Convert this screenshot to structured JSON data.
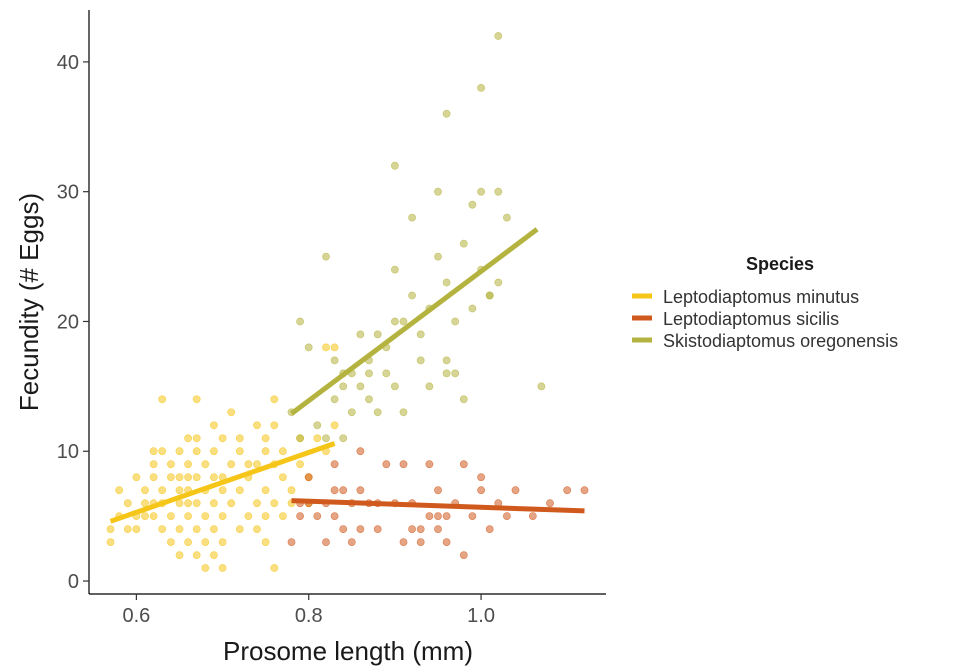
{
  "chart_data": {
    "type": "scatter",
    "xlabel": "Prosome length (mm)",
    "ylabel": "Fecundity (# Eggs)",
    "xlim": [
      0.545,
      1.145
    ],
    "ylim": [
      -1,
      44
    ],
    "x_ticks": [
      0.6,
      0.8,
      1.0
    ],
    "x_tick_labels": [
      "0.6",
      "0.8",
      "1.0"
    ],
    "y_ticks": [
      0,
      10,
      20,
      30,
      40
    ],
    "y_tick_labels": [
      "0",
      "10",
      "20",
      "30",
      "40"
    ],
    "grid": false,
    "legend": {
      "title": "Species",
      "position": "right"
    },
    "series": [
      {
        "name": "Leptodiaptomus minutus",
        "color": "#F5C518",
        "trend": {
          "x": [
            0.57,
            0.83
          ],
          "y": [
            4.6,
            10.6
          ]
        },
        "points": [
          [
            0.57,
            3
          ],
          [
            0.57,
            4
          ],
          [
            0.58,
            5
          ],
          [
            0.58,
            7
          ],
          [
            0.59,
            4
          ],
          [
            0.59,
            6
          ],
          [
            0.6,
            4
          ],
          [
            0.6,
            5
          ],
          [
            0.6,
            8
          ],
          [
            0.61,
            5
          ],
          [
            0.61,
            6
          ],
          [
            0.61,
            7
          ],
          [
            0.62,
            5
          ],
          [
            0.62,
            6
          ],
          [
            0.62,
            8
          ],
          [
            0.62,
            9
          ],
          [
            0.62,
            10
          ],
          [
            0.63,
            4
          ],
          [
            0.63,
            6
          ],
          [
            0.63,
            7
          ],
          [
            0.63,
            10
          ],
          [
            0.63,
            14
          ],
          [
            0.64,
            3
          ],
          [
            0.64,
            5
          ],
          [
            0.64,
            8
          ],
          [
            0.64,
            9
          ],
          [
            0.65,
            2
          ],
          [
            0.65,
            4
          ],
          [
            0.65,
            6
          ],
          [
            0.65,
            7
          ],
          [
            0.65,
            8
          ],
          [
            0.65,
            10
          ],
          [
            0.66,
            3
          ],
          [
            0.66,
            5
          ],
          [
            0.66,
            6
          ],
          [
            0.66,
            7
          ],
          [
            0.66,
            8
          ],
          [
            0.66,
            9
          ],
          [
            0.66,
            11
          ],
          [
            0.67,
            2
          ],
          [
            0.67,
            4
          ],
          [
            0.67,
            6
          ],
          [
            0.67,
            8
          ],
          [
            0.67,
            10
          ],
          [
            0.67,
            11
          ],
          [
            0.67,
            14
          ],
          [
            0.68,
            1
          ],
          [
            0.68,
            3
          ],
          [
            0.68,
            5
          ],
          [
            0.68,
            7
          ],
          [
            0.68,
            9
          ],
          [
            0.69,
            2
          ],
          [
            0.69,
            4
          ],
          [
            0.69,
            6
          ],
          [
            0.69,
            8
          ],
          [
            0.69,
            10
          ],
          [
            0.69,
            12
          ],
          [
            0.7,
            1
          ],
          [
            0.7,
            3
          ],
          [
            0.7,
            5
          ],
          [
            0.7,
            7
          ],
          [
            0.7,
            8
          ],
          [
            0.7,
            11
          ],
          [
            0.71,
            6
          ],
          [
            0.71,
            9
          ],
          [
            0.71,
            13
          ],
          [
            0.72,
            4
          ],
          [
            0.72,
            7
          ],
          [
            0.72,
            10
          ],
          [
            0.72,
            11
          ],
          [
            0.73,
            5
          ],
          [
            0.73,
            8
          ],
          [
            0.73,
            9
          ],
          [
            0.74,
            4
          ],
          [
            0.74,
            6
          ],
          [
            0.74,
            9
          ],
          [
            0.74,
            12
          ],
          [
            0.75,
            3
          ],
          [
            0.75,
            5
          ],
          [
            0.75,
            7
          ],
          [
            0.75,
            10
          ],
          [
            0.75,
            11
          ],
          [
            0.76,
            1
          ],
          [
            0.76,
            6
          ],
          [
            0.76,
            9
          ],
          [
            0.76,
            12
          ],
          [
            0.76,
            14
          ],
          [
            0.77,
            5
          ],
          [
            0.77,
            8
          ],
          [
            0.77,
            10
          ],
          [
            0.78,
            6
          ],
          [
            0.78,
            7
          ],
          [
            0.79,
            9
          ],
          [
            0.79,
            11
          ],
          [
            0.8,
            6
          ],
          [
            0.8,
            8
          ],
          [
            0.81,
            11
          ],
          [
            0.82,
            10
          ],
          [
            0.82,
            18
          ],
          [
            0.83,
            12
          ],
          [
            0.83,
            18
          ]
        ]
      },
      {
        "name": "Leptodiaptomus sicilis",
        "color": "#D05A1E",
        "trend": {
          "x": [
            0.78,
            1.12
          ],
          "y": [
            6.2,
            5.4
          ]
        },
        "points": [
          [
            0.78,
            3
          ],
          [
            0.79,
            5
          ],
          [
            0.79,
            6
          ],
          [
            0.8,
            6
          ],
          [
            0.8,
            8
          ],
          [
            0.81,
            5
          ],
          [
            0.82,
            3
          ],
          [
            0.82,
            6
          ],
          [
            0.83,
            5
          ],
          [
            0.83,
            7
          ],
          [
            0.83,
            9
          ],
          [
            0.84,
            4
          ],
          [
            0.84,
            7
          ],
          [
            0.85,
            3
          ],
          [
            0.85,
            6
          ],
          [
            0.86,
            4
          ],
          [
            0.86,
            10
          ],
          [
            0.87,
            6
          ],
          [
            0.88,
            6
          ],
          [
            0.89,
            9
          ],
          [
            0.9,
            6
          ],
          [
            0.91,
            3
          ],
          [
            0.92,
            4
          ],
          [
            0.92,
            6
          ],
          [
            0.93,
            3
          ],
          [
            0.93,
            4
          ],
          [
            0.94,
            5
          ],
          [
            0.94,
            9
          ],
          [
            0.95,
            4
          ],
          [
            0.95,
            7
          ],
          [
            0.96,
            3
          ],
          [
            0.96,
            5
          ],
          [
            0.97,
            6
          ],
          [
            0.98,
            9
          ],
          [
            0.98,
            2
          ],
          [
            0.99,
            5
          ],
          [
            1.0,
            7
          ],
          [
            1.01,
            4
          ],
          [
            1.02,
            6
          ],
          [
            1.04,
            7
          ],
          [
            1.06,
            5
          ],
          [
            1.08,
            6
          ],
          [
            1.1,
            7
          ],
          [
            1.12,
            7
          ],
          [
            1.0,
            8
          ],
          [
            0.91,
            9
          ],
          [
            0.86,
            7
          ],
          [
            0.88,
            4
          ],
          [
            0.95,
            5
          ],
          [
            1.03,
            5
          ]
        ]
      },
      {
        "name": "Skistodiaptomus oregonensis",
        "color": "#B5B33F",
        "trend": {
          "x": [
            0.78,
            1.065
          ],
          "y": [
            12.9,
            27.1
          ]
        },
        "points": [
          [
            0.78,
            13
          ],
          [
            0.79,
            11
          ],
          [
            0.79,
            20
          ],
          [
            0.8,
            18
          ],
          [
            0.81,
            12
          ],
          [
            0.82,
            11
          ],
          [
            0.82,
            25
          ],
          [
            0.83,
            14
          ],
          [
            0.83,
            17
          ],
          [
            0.84,
            15
          ],
          [
            0.84,
            16
          ],
          [
            0.85,
            13
          ],
          [
            0.85,
            16
          ],
          [
            0.86,
            15
          ],
          [
            0.86,
            19
          ],
          [
            0.87,
            14
          ],
          [
            0.87,
            17
          ],
          [
            0.88,
            19
          ],
          [
            0.88,
            13
          ],
          [
            0.89,
            16
          ],
          [
            0.89,
            18
          ],
          [
            0.9,
            15
          ],
          [
            0.9,
            24
          ],
          [
            0.9,
            32
          ],
          [
            0.91,
            20
          ],
          [
            0.91,
            13
          ],
          [
            0.92,
            22
          ],
          [
            0.92,
            28
          ],
          [
            0.93,
            19
          ],
          [
            0.93,
            17
          ],
          [
            0.94,
            21
          ],
          [
            0.94,
            15
          ],
          [
            0.95,
            30
          ],
          [
            0.95,
            25
          ],
          [
            0.96,
            17
          ],
          [
            0.96,
            23
          ],
          [
            0.96,
            36
          ],
          [
            0.97,
            16
          ],
          [
            0.97,
            20
          ],
          [
            0.98,
            14
          ],
          [
            0.98,
            26
          ],
          [
            0.99,
            21
          ],
          [
            0.99,
            29
          ],
          [
            1.0,
            30
          ],
          [
            1.0,
            38
          ],
          [
            1.0,
            24
          ],
          [
            1.01,
            22
          ],
          [
            1.02,
            42
          ],
          [
            1.02,
            30
          ],
          [
            1.02,
            23
          ],
          [
            1.03,
            28
          ],
          [
            1.07,
            15
          ],
          [
            0.9,
            20
          ],
          [
            0.87,
            16
          ],
          [
            0.84,
            11
          ],
          [
            0.96,
            16
          ],
          [
            1.01,
            22
          ]
        ]
      }
    ]
  }
}
